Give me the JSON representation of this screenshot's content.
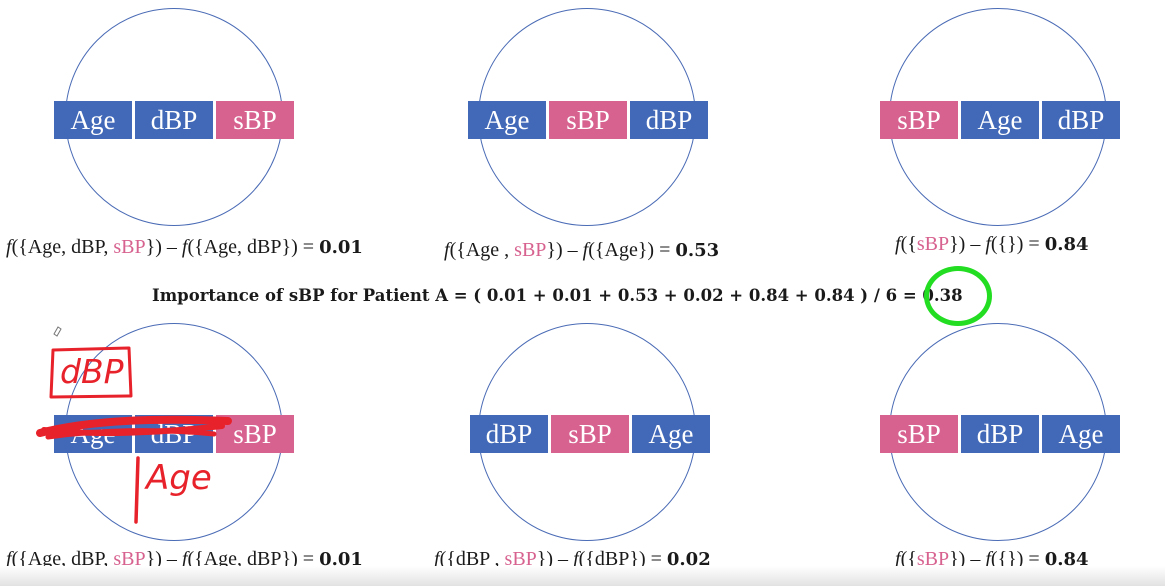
{
  "panels": [
    {
      "boxes": [
        {
          "label": "Age",
          "color": "#4169b8"
        },
        {
          "label": "dBP",
          "color": "#4169b8"
        },
        {
          "label": "sBP",
          "color": "#d7628f"
        }
      ],
      "formula": {
        "f1": "f",
        "a": "({Age, dBP, ",
        "b": "sBP",
        "c": "}) – ",
        "f2": "f",
        "d": "({Age, dBP}) = ",
        "value": "0.01"
      }
    },
    {
      "boxes": [
        {
          "label": "Age",
          "color": "#4169b8"
        },
        {
          "label": "sBP",
          "color": "#d7628f"
        },
        {
          "label": "dBP",
          "color": "#4169b8"
        }
      ],
      "formula": {
        "f1": "f",
        "a": "({Age , ",
        "b": "sBP",
        "c": "}) – ",
        "f2": "f",
        "d": "({Age}) = ",
        "value": "0.53"
      }
    },
    {
      "boxes": [
        {
          "label": "sBP",
          "color": "#d7628f"
        },
        {
          "label": "Age",
          "color": "#4169b8"
        },
        {
          "label": "dBP",
          "color": "#4169b8"
        }
      ],
      "formula": {
        "f1": "f",
        "a": "({",
        "b": "sBP",
        "c": "}) – ",
        "f2": "f",
        "d": "({}) = ",
        "value": "0.84"
      }
    },
    {
      "boxes": [
        {
          "label": "Age",
          "color": "#4169b8"
        },
        {
          "label": "dBP",
          "color": "#4169b8"
        },
        {
          "label": "sBP",
          "color": "#d7628f"
        }
      ],
      "formula": {
        "f1": "f",
        "a": "({Age, dBP, ",
        "b": "sBP",
        "c": "}) – ",
        "f2": "f",
        "d": "({Age, dBP}) = ",
        "value": "0.01"
      }
    },
    {
      "boxes": [
        {
          "label": "dBP",
          "color": "#4169b8"
        },
        {
          "label": "sBP",
          "color": "#d7628f"
        },
        {
          "label": "Age",
          "color": "#4169b8"
        }
      ],
      "formula": {
        "f1": "f",
        "a": "({dBP , ",
        "b": "sBP",
        "c": "}) – ",
        "f2": "f",
        "d": "({dBP}) = ",
        "value": "0.02"
      }
    },
    {
      "boxes": [
        {
          "label": "sBP",
          "color": "#d7628f"
        },
        {
          "label": "dBP",
          "color": "#4169b8"
        },
        {
          "label": "Age",
          "color": "#4169b8"
        }
      ],
      "formula": {
        "f1": "f",
        "a": "({",
        "b": "sBP",
        "c": "}) – ",
        "f2": "f",
        "d": "({}) = ",
        "value": "0.84"
      }
    }
  ],
  "importance": "Importance of sBP for Patient A = ( 0.01 + 0.01 + 0.53 + 0.02 + 0.84 + 0.84 ) / 6 = 0.38",
  "annotations": {
    "box_label": "dBP",
    "below_label": "Age",
    "color": "#e8222a",
    "highlight_color": "#22dd22"
  }
}
